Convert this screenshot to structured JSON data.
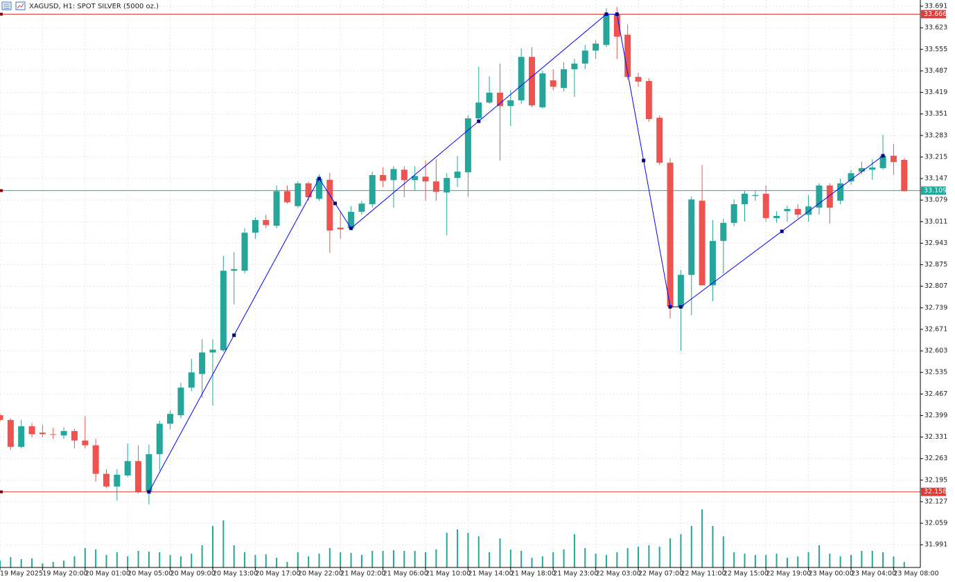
{
  "chart_data": {
    "type": "candlestick",
    "title": "XAGUSD, H1:  SPOT SILVER (5000 oz.)",
    "categories": [
      "19 May 2025",
      null,
      null,
      null,
      "19 May 20:00",
      null,
      null,
      null,
      "20 May 01:00",
      null,
      null,
      null,
      "20 May 05:00",
      null,
      null,
      null,
      "20 May 09:00",
      null,
      null,
      null,
      "20 May 13:00",
      null,
      null,
      null,
      "20 May 17:00",
      null,
      null,
      null,
      "20 May 22:00",
      null,
      null,
      null,
      "21 May 02:00",
      null,
      null,
      null,
      "21 May 06:00",
      null,
      null,
      null,
      "21 May 10:00",
      null,
      null,
      null,
      "21 May 14:00",
      null,
      null,
      null,
      "21 May 18:00",
      null,
      null,
      null,
      "21 May 23:00",
      null,
      null,
      null,
      "22 May 03:00",
      null,
      null,
      null,
      "22 May 07:00",
      null,
      null,
      null,
      "22 May 11:00",
      null,
      null,
      null,
      "22 May 15:00",
      null,
      null,
      null,
      "22 May 19:00",
      null,
      null,
      null,
      "23 May 00:00",
      null,
      null,
      null,
      "23 May 04:00",
      null,
      null,
      null,
      "23 May 08:00",
      null
    ],
    "open": [
      32.4,
      32.385,
      32.3,
      32.365,
      32.345,
      32.34,
      32.336,
      32.35,
      32.32,
      32.305,
      32.215,
      32.175,
      32.21,
      32.255,
      32.158,
      32.277,
      32.373,
      32.4,
      32.487,
      32.53,
      32.598,
      32.605,
      32.856,
      32.856,
      32.976,
      33.016,
      32.998,
      33.107,
      33.06,
      33.132,
      33.083,
      33.143,
      32.992,
      32.99,
      33.042,
      33.066,
      33.158,
      33.142,
      33.175,
      33.142,
      33.153,
      33.138,
      33.103,
      33.149,
      33.167,
      33.337,
      33.387,
      33.418,
      33.376,
      33.394,
      33.531,
      33.372,
      33.457,
      33.433,
      33.492,
      33.51,
      33.551,
      33.569,
      33.666,
      33.601,
      33.468,
      33.455,
      33.339,
      33.197,
      32.742,
      32.843,
      33.077,
      32.81,
      32.95,
      33.007,
      33.066,
      33.092,
      33.099,
      33.022,
      33.044,
      33.051,
      33.033,
      33.055,
      33.125,
      33.077,
      33.138,
      33.169,
      33.175,
      33.18,
      33.219,
      33.206
    ],
    "high": [
      32.405,
      32.39,
      32.385,
      32.375,
      32.37,
      32.36,
      32.362,
      32.357,
      32.397,
      32.325,
      32.23,
      32.23,
      32.31,
      32.305,
      32.307,
      32.383,
      32.415,
      32.502,
      32.578,
      32.64,
      32.64,
      32.902,
      32.914,
      32.99,
      33.025,
      33.033,
      33.125,
      33.125,
      33.138,
      33.138,
      33.16,
      33.165,
      33.044,
      33.06,
      33.077,
      33.169,
      33.182,
      33.186,
      33.186,
      33.186,
      33.204,
      33.208,
      33.164,
      33.219,
      33.346,
      33.5,
      33.47,
      33.51,
      33.427,
      33.558,
      33.562,
      33.488,
      33.492,
      33.514,
      33.525,
      33.569,
      33.584,
      33.685,
      33.689,
      33.634,
      33.481,
      33.464,
      33.346,
      33.212,
      32.858,
      33.09,
      33.19,
      33.016,
      33.02,
      33.081,
      33.11,
      33.11,
      33.125,
      33.044,
      33.062,
      33.066,
      33.095,
      33.132,
      33.132,
      33.147,
      33.175,
      33.201,
      33.208,
      33.285,
      33.256,
      33.212
    ],
    "low": [
      32.38,
      32.29,
      32.295,
      32.33,
      32.33,
      32.325,
      32.325,
      32.295,
      32.295,
      32.19,
      32.17,
      32.13,
      32.205,
      32.153,
      32.118,
      32.225,
      32.355,
      32.39,
      32.476,
      32.455,
      32.43,
      32.6,
      32.75,
      32.848,
      32.957,
      32.99,
      32.99,
      33.068,
      33.055,
      33.077,
      33.077,
      32.913,
      32.957,
      32.985,
      33.033,
      33.055,
      33.12,
      33.055,
      33.088,
      33.11,
      33.077,
      33.077,
      32.968,
      33.12,
      33.09,
      33.335,
      33.383,
      33.204,
      33.313,
      33.383,
      33.372,
      33.368,
      33.426,
      33.422,
      33.405,
      33.492,
      33.525,
      33.562,
      33.525,
      33.459,
      33.437,
      33.326,
      33.19,
      32.705,
      32.603,
      32.716,
      32.81,
      32.76,
      32.847,
      32.996,
      33.011,
      33.077,
      33.011,
      33.007,
      33.011,
      33.022,
      33.011,
      33.033,
      33.005,
      33.066,
      33.127,
      33.16,
      33.143,
      33.175,
      33.158,
      33.107
    ],
    "close": [
      32.385,
      32.3,
      32.365,
      32.34,
      32.34,
      32.338,
      32.35,
      32.32,
      32.305,
      32.215,
      32.175,
      32.212,
      32.255,
      32.158,
      32.277,
      32.373,
      32.404,
      32.487,
      32.535,
      32.598,
      32.607,
      32.856,
      32.861,
      32.976,
      33.016,
      33.0,
      33.107,
      33.072,
      33.132,
      33.088,
      33.147,
      32.983,
      32.987,
      33.042,
      33.068,
      33.158,
      33.14,
      33.177,
      33.142,
      33.155,
      33.138,
      33.105,
      33.149,
      33.169,
      33.337,
      33.387,
      33.418,
      33.376,
      33.394,
      33.531,
      33.378,
      33.479,
      33.437,
      33.492,
      33.51,
      33.551,
      33.573,
      33.666,
      33.595,
      33.468,
      33.453,
      33.335,
      33.197,
      32.742,
      32.843,
      33.081,
      32.81,
      32.95,
      33.007,
      33.066,
      33.099,
      33.095,
      33.022,
      33.029,
      33.051,
      33.033,
      33.059,
      33.125,
      33.055,
      33.132,
      33.164,
      33.18,
      33.182,
      33.219,
      33.199,
      33.107
    ],
    "volume": [
      10,
      15,
      12,
      13,
      6,
      8,
      10,
      16,
      28,
      26,
      18,
      22,
      16,
      24,
      23,
      22,
      18,
      16,
      20,
      32,
      60,
      68,
      32,
      22,
      18,
      19,
      14,
      8,
      22,
      16,
      20,
      28,
      22,
      21,
      18,
      24,
      24,
      25,
      24,
      24,
      22,
      26,
      50,
      55,
      50,
      45,
      22,
      42,
      26,
      24,
      14,
      16,
      22,
      26,
      48,
      28,
      20,
      18,
      22,
      28,
      30,
      32,
      30,
      42,
      48,
      60,
      84,
      60,
      45,
      22,
      20,
      18,
      18,
      20,
      14,
      16,
      22,
      32,
      20,
      16,
      18,
      24,
      24,
      22,
      16,
      8
    ],
    "volume_lim": [
      0,
      100
    ],
    "up_color": "#26a69a",
    "down_color": "#ef5350",
    "volume_color": "#26a69a",
    "ylim": [
      31.9193,
      33.7107
    ],
    "yticks": [
      33.691,
      33.623,
      33.555,
      33.487,
      33.419,
      33.351,
      33.283,
      33.215,
      33.147,
      33.079,
      33.011,
      32.943,
      32.875,
      32.807,
      32.739,
      32.671,
      32.603,
      32.535,
      32.467,
      32.399,
      32.331,
      32.263,
      32.195,
      32.127,
      32.059,
      31.991
    ],
    "grid": true,
    "levels": [
      {
        "value": 33.666,
        "color": "#e53935"
      },
      {
        "value": 33.109,
        "color": "#26a69a"
      },
      {
        "value": 32.158,
        "color": "#e53935"
      }
    ],
    "zigzag": {
      "color": "#0000ff",
      "index": [
        14,
        30,
        33,
        57,
        58,
        63,
        64,
        83
      ],
      "values": [
        32.158,
        33.147,
        32.99,
        33.666,
        33.666,
        32.742,
        32.742,
        33.219
      ]
    }
  }
}
